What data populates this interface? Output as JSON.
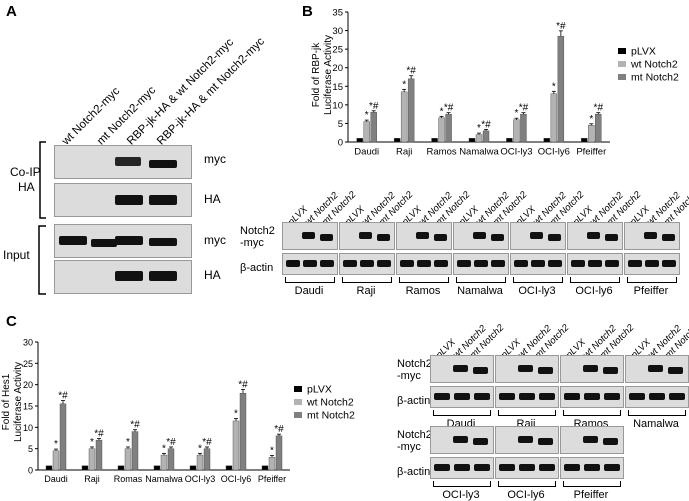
{
  "panels": {
    "a": "A",
    "b": "B",
    "c": "C"
  },
  "panel_a": {
    "lanes": [
      "wt Notch2-myc",
      "mt Notch2-myc",
      "RBP-jk-HA & wt Notch2-myc",
      "RBP-jk-HA & mt Notch2-myc"
    ],
    "coip_label": "Co-IP\nHA",
    "coip_line1": "Co-IP",
    "coip_line2": "HA",
    "input_label": "Input",
    "blot_labels": [
      "myc",
      "HA",
      "myc",
      "HA"
    ]
  },
  "panel_b_blot": {
    "lane_labels": [
      "pLVX",
      "wt Notch2",
      "mt Notch2"
    ],
    "row1_label_1": "Notch2",
    "row1_label_2": "-myc",
    "row2_label": "β-actin",
    "cell_lines": [
      "Daudi",
      "Raji",
      "Ramos",
      "Namalwa",
      "OCI-ly3",
      "OCI-ly6",
      "Pfeiffer"
    ]
  },
  "panel_c_blot": {
    "top_cell_lines": [
      "Daudi",
      "Raji",
      "Ramos",
      "Namalwa"
    ],
    "bottom_cell_lines": [
      "OCI-ly3",
      "OCI-ly6",
      "Pfeiffer"
    ],
    "row1_label_1": "Notch2",
    "row1_label_2": "-myc",
    "row2_label": "β-actin",
    "lane_labels": [
      "pLVX",
      "wt Notch2",
      "mt Notch2"
    ]
  },
  "chart_data": [
    {
      "type": "bar",
      "ylabel": "Fold of RBP-jk Luciferase Activity",
      "ylabel_1": "Fold of RBP-jk",
      "ylabel_2": "Luciferase Activity",
      "categories": [
        "Daudi",
        "Raji",
        "Ramos",
        "Namalwa",
        "OCI-ly3",
        "OCI-ly6",
        "Pfeiffer"
      ],
      "ylim": [
        0,
        35
      ],
      "yticks": [
        0,
        5,
        10,
        15,
        20,
        25,
        30,
        35
      ],
      "series": [
        {
          "name": "pLVX",
          "color": "#000000",
          "values": [
            1,
            1,
            1,
            1,
            1,
            1,
            1
          ]
        },
        {
          "name": "wt Notch2",
          "color": "#b3b3b3",
          "values": [
            5.5,
            13.5,
            6.5,
            2.0,
            6.0,
            13.0,
            4.5
          ]
        },
        {
          "name": "mt Notch2",
          "color": "#808080",
          "values": [
            8.0,
            17.0,
            7.5,
            3.0,
            7.5,
            28.5,
            7.5
          ]
        }
      ],
      "annotations": [
        "*",
        "*#"
      ],
      "legend": "right"
    },
    {
      "type": "bar",
      "ylabel": "Fold of Hes1 Luciferase Activity",
      "ylabel_1": "Fold of Hes1",
      "ylabel_2": "Luciferase Activity",
      "categories": [
        "Daudi",
        "Raji",
        "Romas",
        "Namalwa",
        "OCI-ly3",
        "OCI-ly6",
        "Pfeiffer"
      ],
      "ylim": [
        0,
        30
      ],
      "yticks": [
        0,
        5,
        10,
        15,
        20,
        25,
        30
      ],
      "series": [
        {
          "name": "pLVX",
          "color": "#000000",
          "values": [
            1,
            1,
            1,
            1,
            1,
            1,
            1
          ]
        },
        {
          "name": "wt Notch2",
          "color": "#b3b3b3",
          "values": [
            4.5,
            5.0,
            5.0,
            3.5,
            3.5,
            11.5,
            3.0
          ]
        },
        {
          "name": "mt Notch2",
          "color": "#808080",
          "values": [
            15.5,
            7.0,
            9.0,
            5.0,
            5.0,
            18.0,
            8.0
          ]
        }
      ],
      "annotations": [
        "*",
        "*#"
      ],
      "legend": "right"
    }
  ]
}
